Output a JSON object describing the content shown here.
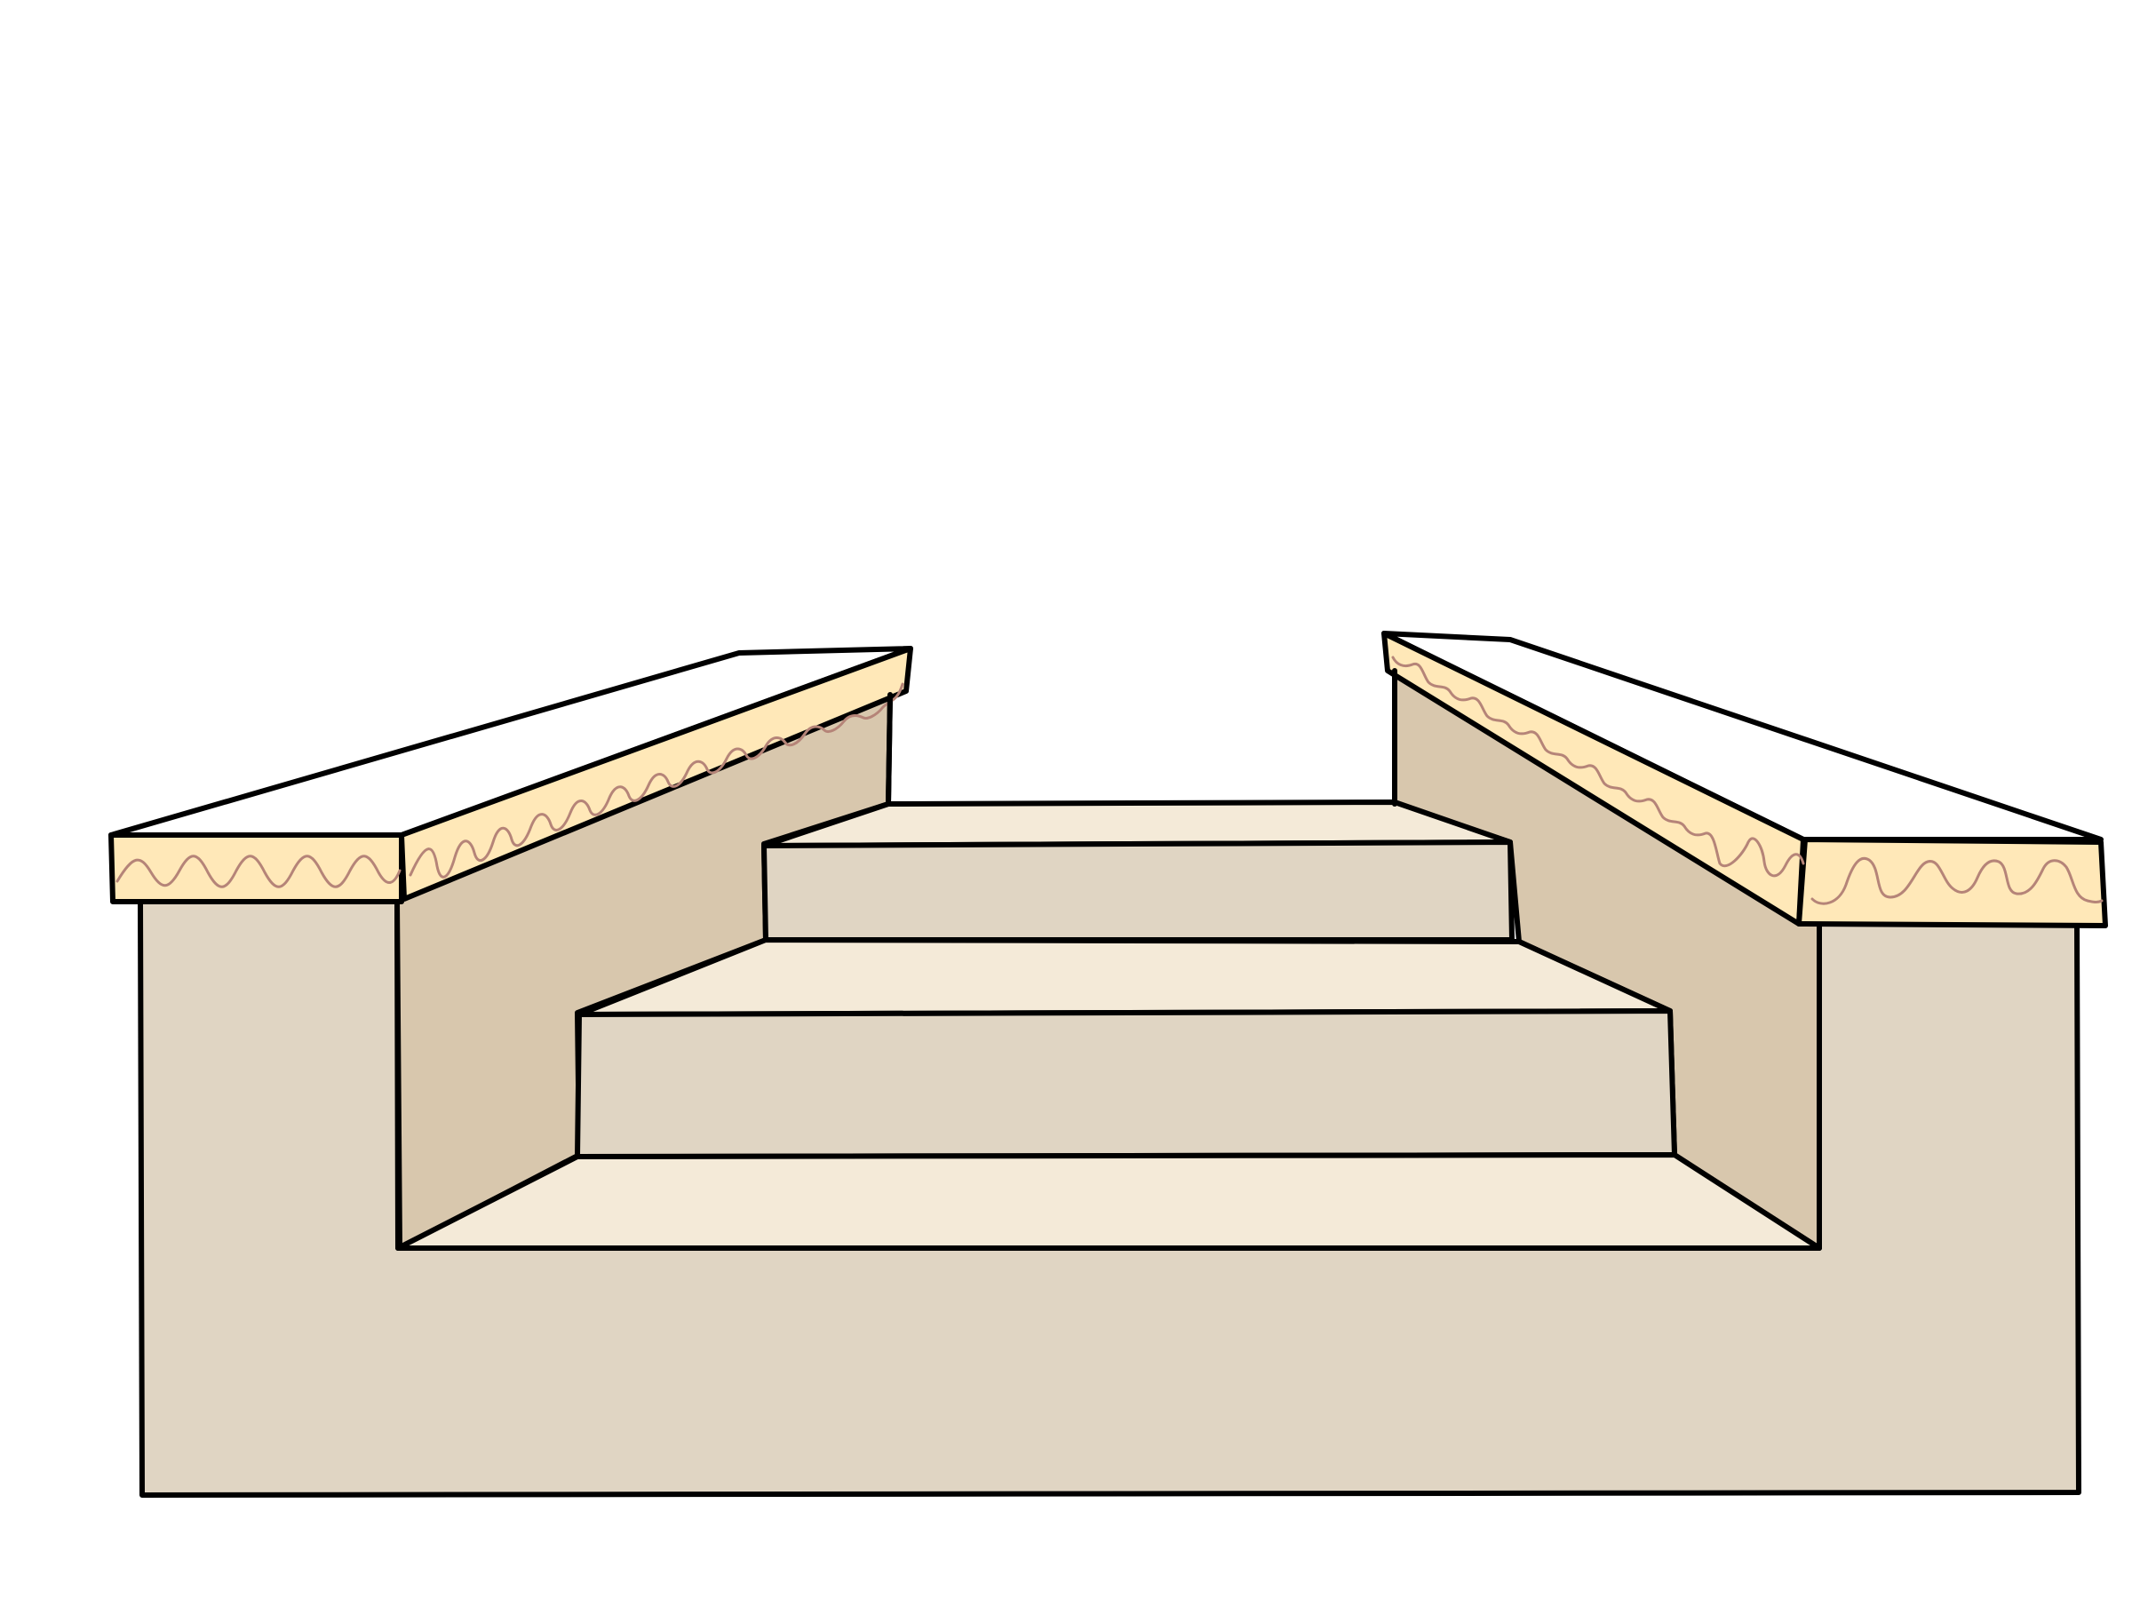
{
  "illustration": {
    "subject": "stairs-between-two-walls",
    "step_count": 3,
    "colors": {
      "background": "#ffffff",
      "outline": "#000000",
      "wall_front": "#e0d5c3",
      "wall_inner": "#d8c7ad",
      "step_tread": "#f4ead8",
      "step_riser": "#e0d5c3",
      "cap_top": "#ffffff",
      "cap_band": "#ffe8b8",
      "band_squiggle": "#b58478"
    }
  }
}
